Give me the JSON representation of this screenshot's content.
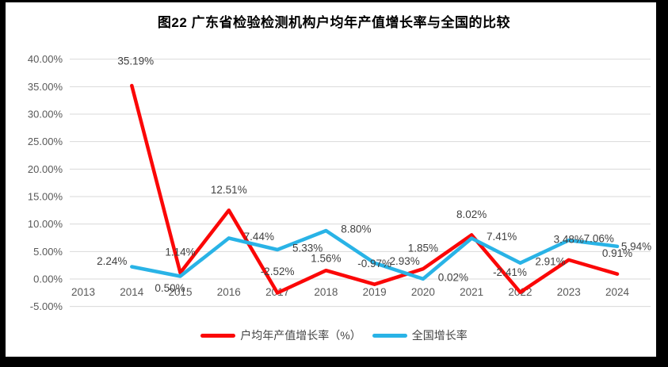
{
  "chart_data": {
    "type": "line",
    "title": "图22  广东省检验检测机构户均年产值增长率与全国的比较",
    "categories": [
      "2013",
      "2014",
      "2015",
      "2016",
      "2017",
      "2018",
      "2019",
      "2020",
      "2021",
      "2022",
      "2023",
      "2024"
    ],
    "series": [
      {
        "id": "provincial-avg-output-growth",
        "name": "户均年产值增长率（%）",
        "color": "#FB0707",
        "values": [
          null,
          35.19,
          1.14,
          12.51,
          -2.52,
          1.56,
          -0.97,
          1.85,
          8.02,
          -2.41,
          3.48,
          0.91
        ],
        "labels": [
          "",
          "35.19%",
          "1.14%",
          "12.51%",
          "-2.52%",
          "1.56%",
          "-0.97%",
          "1.85%",
          "8.02%",
          "-2.41%",
          "3.48%",
          "0.91%"
        ]
      },
      {
        "id": "national-growth",
        "name": "全国增长率",
        "color": "#29B3E6",
        "values": [
          null,
          2.24,
          0.5,
          7.44,
          5.33,
          8.8,
          2.93,
          0.02,
          7.41,
          2.91,
          7.06,
          5.94
        ],
        "labels": [
          "",
          "2.24%",
          "0.50%",
          "7.44%",
          "5.33%",
          "8.80%",
          "2.93%",
          "0.02%",
          "7.41%",
          "2.91%",
          "7.06%",
          "5.94%"
        ]
      }
    ],
    "y_axis": {
      "min": -5,
      "max": 40,
      "step": 5,
      "tick_labels": [
        "40.00%",
        "35.00%",
        "30.00%",
        "25.00%",
        "20.00%",
        "15.00%",
        "10.00%",
        "5.00%",
        "0.00%",
        "-5.00%"
      ]
    },
    "grid": true,
    "legend_position": "bottom",
    "colors": {
      "grid": "#D9D9D9",
      "axis_text": "#595959",
      "data_label_text": "#404040",
      "title_text": "#000000",
      "background": "#FFFFFF",
      "frame": "#000000"
    }
  }
}
